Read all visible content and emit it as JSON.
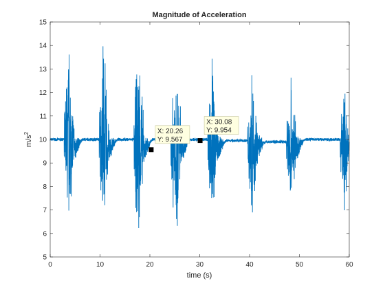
{
  "chart_data": {
    "type": "line",
    "title": "Magnitude of Acceleration",
    "xlabel": "time (s)",
    "ylabel_base": "m/s",
    "ylabel_exponent": "2",
    "xlim": [
      0,
      60
    ],
    "ylim": [
      5,
      15
    ],
    "xticks": [
      0,
      10,
      20,
      30,
      40,
      50,
      60
    ],
    "yticks": [
      5,
      6,
      7,
      8,
      9,
      10,
      11,
      12,
      13,
      14,
      15
    ],
    "grid": false,
    "line_color": "#0072bd",
    "baseline_before_burst": [
      10.0,
      10.0,
      10.0,
      10.0,
      10.0,
      9.95,
      9.9,
      10.0,
      9.95
    ],
    "baseline_after_burst": [
      9.65,
      9.65,
      9.6,
      9.65,
      9.6,
      9.7,
      9.65,
      9.65,
      9.65
    ],
    "bursts": [
      {
        "t_start": 2.8,
        "t_end": 5.0,
        "min": 5.8,
        "max": 15.0
      },
      {
        "t_start": 9.8,
        "t_end": 12.0,
        "min": 5.9,
        "max": 15.0
      },
      {
        "t_start": 16.8,
        "t_end": 19.0,
        "min": 5.0,
        "max": 15.0
      },
      {
        "t_start": 24.2,
        "t_end": 26.6,
        "min": 5.0,
        "max": 15.0
      },
      {
        "t_start": 31.6,
        "t_end": 33.8,
        "min": 6.2,
        "max": 14.3
      },
      {
        "t_start": 39.6,
        "t_end": 41.8,
        "min": 6.3,
        "max": 13.6
      },
      {
        "t_start": 47.4,
        "t_end": 49.6,
        "min": 6.5,
        "max": 13.4
      },
      {
        "t_start": 58.2,
        "t_end": 60.0,
        "min": 6.0,
        "max": 12.8
      }
    ],
    "datatips": [
      {
        "x": 20.26,
        "y": 9.567,
        "x_text": "X: 20.26",
        "y_text": "Y: 9.567"
      },
      {
        "x": 30.08,
        "y": 9.954,
        "x_text": "X: 30.08",
        "y_text": "Y: 9.954"
      }
    ]
  }
}
